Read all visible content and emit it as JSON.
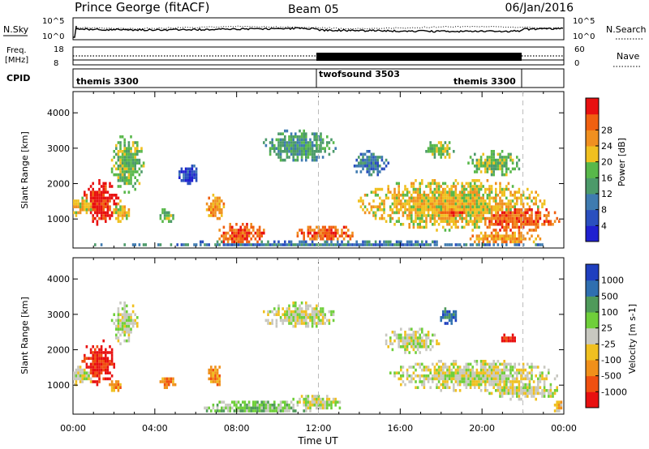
{
  "header": {
    "title": "Prince George (fitACF)",
    "beam": "Beam 05",
    "date": "06/Jan/2016"
  },
  "noise_panel": {
    "left_label": "N.Sky",
    "right_label": "N.Search",
    "left_ticks": [
      "10^5",
      "10^0"
    ],
    "right_ticks": [
      "10^5",
      "10^0"
    ]
  },
  "freq_panel": {
    "label_line1": "Freq.",
    "label_line2": "[MHz]",
    "left_ticks": [
      "18",
      "8"
    ],
    "right_label": "Nave",
    "right_ticks": [
      "60",
      "0"
    ]
  },
  "cpid": {
    "label": "CPID",
    "modes": [
      {
        "name": "themis 3300",
        "start": "00:00"
      },
      {
        "name": "twofsound 3503",
        "start": "12:00"
      },
      {
        "name": "themis 3300",
        "start": "22:00"
      }
    ]
  },
  "colors": {
    "power_scale": [
      "#1f20d0",
      "#2a4fbf",
      "#3f7bb0",
      "#4c9a6a",
      "#58b84a",
      "#f0c020",
      "#f09020",
      "#f06010",
      "#e81010"
    ],
    "velocity_scale": [
      "#1f3fbf",
      "#2f6fb0",
      "#4f9a5a",
      "#6fcf3a",
      "#c8c8c0",
      "#f0c020",
      "#f0901a",
      "#f05010",
      "#e81010"
    ]
  },
  "chart_data": [
    {
      "type": "heatmap",
      "title": "Power",
      "ylabel": "Slant Range [km]",
      "yticks": [
        1000,
        2000,
        3000,
        4000
      ],
      "ylim": [
        180,
        4600
      ],
      "xlabel": "Time UT",
      "xticks": [
        "00:00",
        "04:00",
        "08:00",
        "12:00",
        "16:00",
        "20:00",
        "00:00"
      ],
      "xlim_hours": [
        0,
        24
      ],
      "colorbar_label": "Power [dB]",
      "colorbar_ticks": [
        4,
        8,
        12,
        16,
        20,
        24,
        28
      ],
      "patches": [
        {
          "t": [
            1.3,
            1.0
          ],
          "r": [
            1500,
            700
          ],
          "level": 8
        },
        {
          "t": [
            0.4,
            1.3
          ],
          "r": [
            1400,
            300
          ],
          "level": 5
        },
        {
          "t": [
            2.3,
            0.5
          ],
          "r": [
            1250,
            350
          ],
          "level": 5
        },
        {
          "t": [
            2.6,
            0.9
          ],
          "r": [
            2600,
            900
          ],
          "level": 4
        },
        {
          "t": [
            5.6,
            0.6
          ],
          "r": [
            2300,
            300
          ],
          "level": 1
        },
        {
          "t": [
            4.5,
            0.5
          ],
          "r": [
            1150,
            250
          ],
          "level": 4
        },
        {
          "t": [
            6.9,
            0.5
          ],
          "r": [
            1350,
            400
          ],
          "level": 6
        },
        {
          "t": [
            8.2,
            1.4
          ],
          "r": [
            600,
            350
          ],
          "level": 7
        },
        {
          "t": [
            12.3,
            1.6
          ],
          "r": [
            620,
            280
          ],
          "level": 7
        },
        {
          "t": [
            11.0,
            2.0
          ],
          "r": [
            3100,
            500
          ],
          "level": 3
        },
        {
          "t": [
            14.5,
            1.0
          ],
          "r": [
            2600,
            400
          ],
          "level": 2
        },
        {
          "t": [
            17.9,
            0.8
          ],
          "r": [
            3000,
            300
          ],
          "level": 4
        },
        {
          "t": [
            20.5,
            1.5
          ],
          "r": [
            2600,
            400
          ],
          "level": 4
        },
        {
          "t": [
            18.5,
            5.0
          ],
          "r": [
            1450,
            800
          ],
          "level": 5
        },
        {
          "t": [
            21.5,
            2.5
          ],
          "r": [
            1050,
            400
          ],
          "level": 7
        },
        {
          "t": [
            18.5,
            2.0
          ],
          "r": [
            1250,
            300
          ],
          "level": 7
        },
        {
          "t": [
            21.0,
            2.0
          ],
          "r": [
            500,
            200
          ],
          "level": 6
        },
        {
          "t": [
            12.0,
            12.0
          ],
          "r": [
            300,
            120
          ],
          "level": 2
        }
      ]
    },
    {
      "type": "heatmap",
      "title": "Velocity",
      "ylabel": "Slant Range [km]",
      "yticks": [
        1000,
        2000,
        3000,
        4000
      ],
      "ylim": [
        180,
        4600
      ],
      "xlabel": "Time UT",
      "xticks": [
        "00:00",
        "04:00",
        "08:00",
        "12:00",
        "16:00",
        "20:00",
        "00:00"
      ],
      "xlim_hours": [
        0,
        24
      ],
      "colorbar_label": "Velocity [m s-1]",
      "colorbar_ticks": [
        1000,
        500,
        100,
        25,
        -25,
        -100,
        -500,
        -1000
      ],
      "patches": [
        {
          "t": [
            1.2,
            0.9
          ],
          "r": [
            1700,
            700
          ],
          "level": 8
        },
        {
          "t": [
            0.3,
            0.9
          ],
          "r": [
            1300,
            300
          ],
          "level": 4
        },
        {
          "t": [
            2.5,
            0.7
          ],
          "r": [
            2800,
            700
          ],
          "level": 4
        },
        {
          "t": [
            2.0,
            0.4
          ],
          "r": [
            1000,
            200
          ],
          "level": 6
        },
        {
          "t": [
            4.6,
            0.5
          ],
          "r": [
            1150,
            250
          ],
          "level": 6
        },
        {
          "t": [
            6.9,
            0.4
          ],
          "r": [
            1300,
            350
          ],
          "level": 6
        },
        {
          "t": [
            9.0,
            3.0
          ],
          "r": [
            400,
            250
          ],
          "level": 3
        },
        {
          "t": [
            12.0,
            1.5
          ],
          "r": [
            550,
            250
          ],
          "level": 4
        },
        {
          "t": [
            11.0,
            2.0
          ],
          "r": [
            3000,
            400
          ],
          "level": 4
        },
        {
          "t": [
            16.5,
            1.5
          ],
          "r": [
            2300,
            400
          ],
          "level": 4
        },
        {
          "t": [
            18.3,
            0.5
          ],
          "r": [
            3000,
            300
          ],
          "level": 1
        },
        {
          "t": [
            21.2,
            0.6
          ],
          "r": [
            2350,
            150
          ],
          "level": 8
        },
        {
          "t": [
            19.5,
            4.5
          ],
          "r": [
            1300,
            500
          ],
          "level": 4
        },
        {
          "t": [
            22.0,
            2.0
          ],
          "r": [
            900,
            300
          ],
          "level": 4
        },
        {
          "t": [
            23.7,
            0.3
          ],
          "r": [
            450,
            200
          ],
          "level": 5
        }
      ]
    }
  ]
}
